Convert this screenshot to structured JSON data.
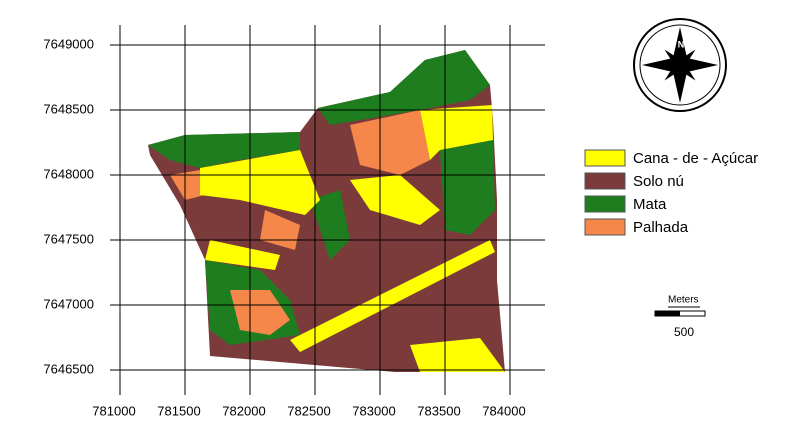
{
  "map": {
    "xticks": [
      781000,
      781500,
      782000,
      782500,
      783000,
      783500,
      784000
    ],
    "yticks": [
      7649000,
      7648500,
      7648000,
      7647500,
      7647000,
      7646500
    ],
    "xlim": [
      781000,
      784000
    ],
    "ylim": [
      7646500,
      7649000
    ],
    "grid": true,
    "legend": [
      {
        "label": "Cana - de - Açúcar",
        "color": "#ffff00"
      },
      {
        "label": "Solo nú",
        "color": "#7b3b3b"
      },
      {
        "label": "Mata",
        "color": "#1e7d1e"
      },
      {
        "label": "Palhada",
        "color": "#f5874a"
      }
    ],
    "scale_bar": {
      "unit": "Meters",
      "length": 500
    },
    "compass": "N"
  }
}
